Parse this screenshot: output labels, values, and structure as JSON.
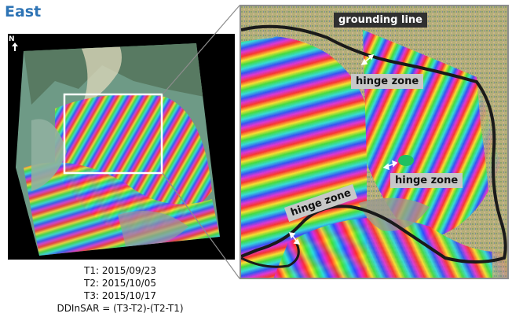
{
  "region_title": "East",
  "captions": {
    "t1": "T1: 2015/09/23",
    "t2": "T2: 2015/10/05",
    "t3": "T3: 2015/10/17",
    "formula": "DDInSAR = (T3-T2)-(T2-T1)"
  },
  "detail": {
    "grounding_line_label": "grounding line",
    "hinge_zone_label_1": "hinge zone",
    "hinge_zone_label_2": "hinge zone",
    "hinge_zone_label_3": "hinge zone"
  },
  "colors": {
    "title": "#2e74b5",
    "grounding_line": "#1a1a1a",
    "label_bg": "#c8c8c8",
    "selection_box": "#ffffff",
    "connector": "#8c8c8c"
  },
  "icons": {
    "north_arrow": "north-arrow-icon",
    "double_arrow": "double-arrow-icon"
  }
}
